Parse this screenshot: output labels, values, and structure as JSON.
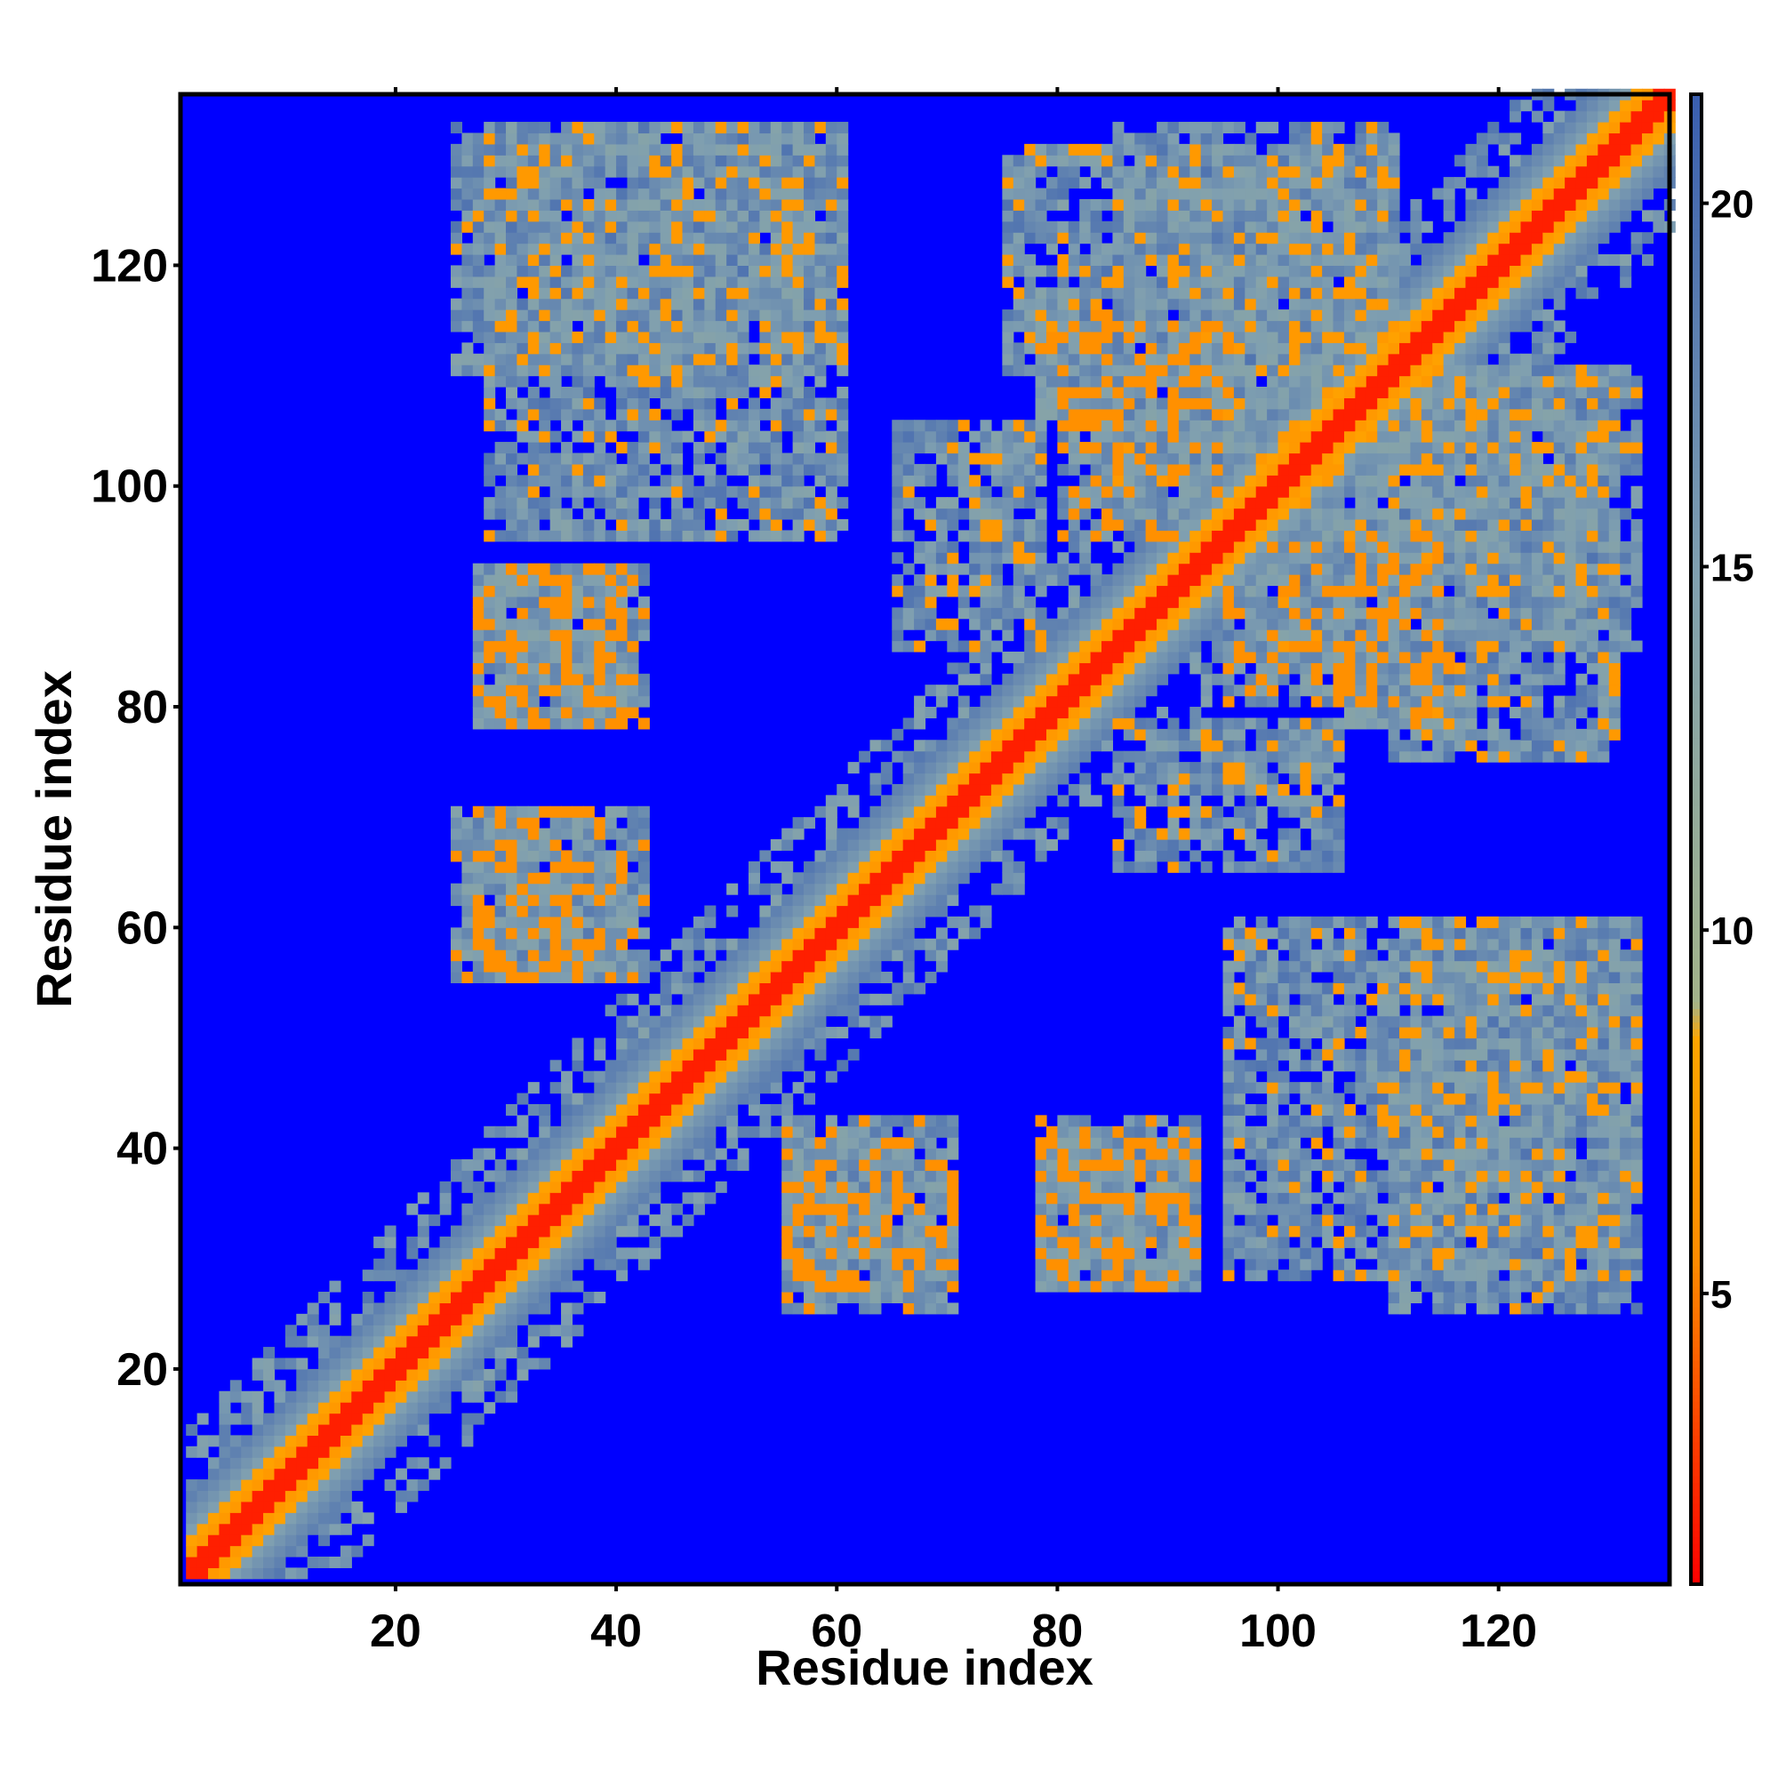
{
  "chart_data": {
    "type": "heatmap",
    "title": "",
    "xlabel": "Residue index",
    "ylabel": "Residue index",
    "xlim": [
      1,
      135
    ],
    "ylim": [
      1,
      135
    ],
    "n_residues": 135,
    "x_ticks": [
      20,
      40,
      60,
      80,
      100,
      120
    ],
    "y_ticks": [
      20,
      40,
      60,
      80,
      100,
      120
    ],
    "x_tick_labels": [
      "20",
      "40",
      "60",
      "80",
      "100",
      "120"
    ],
    "y_tick_labels": [
      "20",
      "40",
      "60",
      "80",
      "100",
      "120"
    ],
    "colorbar": {
      "range": [
        1,
        21.5
      ],
      "ticks": [
        5,
        10,
        15,
        20
      ],
      "tick_labels": [
        "5",
        "10",
        "15",
        "20"
      ],
      "palette": [
        {
          "value": 1,
          "color": "#ff0000"
        },
        {
          "value": 5.5,
          "color": "#ff8c00"
        },
        {
          "value": 8.5,
          "color": "#ffa500"
        },
        {
          "value": 9,
          "color": "#a3b48a"
        },
        {
          "value": 15,
          "color": "#7f9fb0"
        },
        {
          "value": 21.5,
          "color": "#3a5fb0"
        }
      ],
      "above_range_color": "#0000ff"
    },
    "grid": false,
    "legend": "colorbar-right",
    "contact_clusters": [
      {
        "x": [
          28,
          48
        ],
        "y": [
          95,
          132
        ],
        "level": "medium"
      },
      {
        "x": [
          40,
          60
        ],
        "y": [
          95,
          132
        ],
        "level": "medium"
      },
      {
        "x": [
          27,
          42
        ],
        "y": [
          78,
          92
        ],
        "level": "strong"
      },
      {
        "x": [
          27,
          42
        ],
        "y": [
          55,
          70
        ],
        "level": "strong"
      },
      {
        "x": [
          55,
          70
        ],
        "y": [
          25,
          40
        ],
        "level": "strong"
      },
      {
        "x": [
          78,
          92
        ],
        "y": [
          27,
          40
        ],
        "level": "strong"
      },
      {
        "x": [
          80,
          95
        ],
        "y": [
          95,
          115
        ],
        "level": "strong"
      },
      {
        "x": [
          105,
          115
        ],
        "y": [
          78,
          92
        ],
        "level": "strong"
      },
      {
        "x": [
          85,
          105
        ],
        "y": [
          65,
          78
        ],
        "level": "medium"
      },
      {
        "x": [
          110,
          132
        ],
        "y": [
          25,
          60
        ],
        "level": "medium"
      },
      {
        "x": [
          100,
          132
        ],
        "y": [
          85,
          110
        ],
        "level": "medium"
      },
      {
        "x": [
          75,
          110
        ],
        "y": [
          110,
          130
        ],
        "level": "medium"
      }
    ]
  }
}
